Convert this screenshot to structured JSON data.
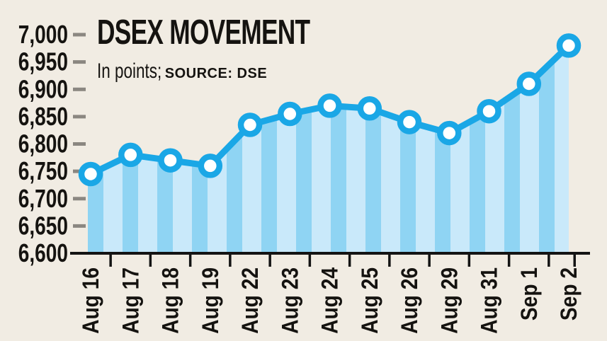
{
  "header": {
    "title": "DSEX MOVEMENT",
    "subtitle": "In points;",
    "source": "SOURCE: DSE"
  },
  "colors": {
    "background": "#f1ece3",
    "line_blue": "#1aa7e6",
    "marker_fill": "#ffffff",
    "stripe_dark": "#8fd4f3",
    "stripe_light": "#c9e9fa",
    "axis_black": "#141414",
    "ytick_gray": "#8b8781",
    "text": "#151310"
  },
  "chart_data": {
    "type": "area",
    "title": "DSEX MOVEMENT",
    "subtitle": "In points; SOURCE: DSE",
    "categories": [
      "Aug 16",
      "Aug 17",
      "Aug 18",
      "Aug 19",
      "Aug 22",
      "Aug 23",
      "Aug 24",
      "Aug 25",
      "Aug 26",
      "Aug 29",
      "Aug 31",
      "Sep 1",
      "Sep 2"
    ],
    "values": [
      6745,
      6780,
      6770,
      6760,
      6835,
      6855,
      6870,
      6865,
      6840,
      6820,
      6860,
      6910,
      6980
    ],
    "ylim": [
      6600,
      7000
    ],
    "yticks": [
      {
        "label": "7,000",
        "value": 7000
      },
      {
        "label": "6,950",
        "value": 6950
      },
      {
        "label": "6,900",
        "value": 6900
      },
      {
        "label": "6,850",
        "value": 6850
      },
      {
        "label": "6,800",
        "value": 6800
      },
      {
        "label": "6,750",
        "value": 6750
      },
      {
        "label": "6,700",
        "value": 6700
      },
      {
        "label": "6,650",
        "value": 6650
      },
      {
        "label": "6,600",
        "value": 6600
      }
    ],
    "xlabel": "",
    "ylabel": "",
    "grid": false,
    "legend": false,
    "marker": "circle-outline",
    "fill_style": "vertical-stripes"
  }
}
